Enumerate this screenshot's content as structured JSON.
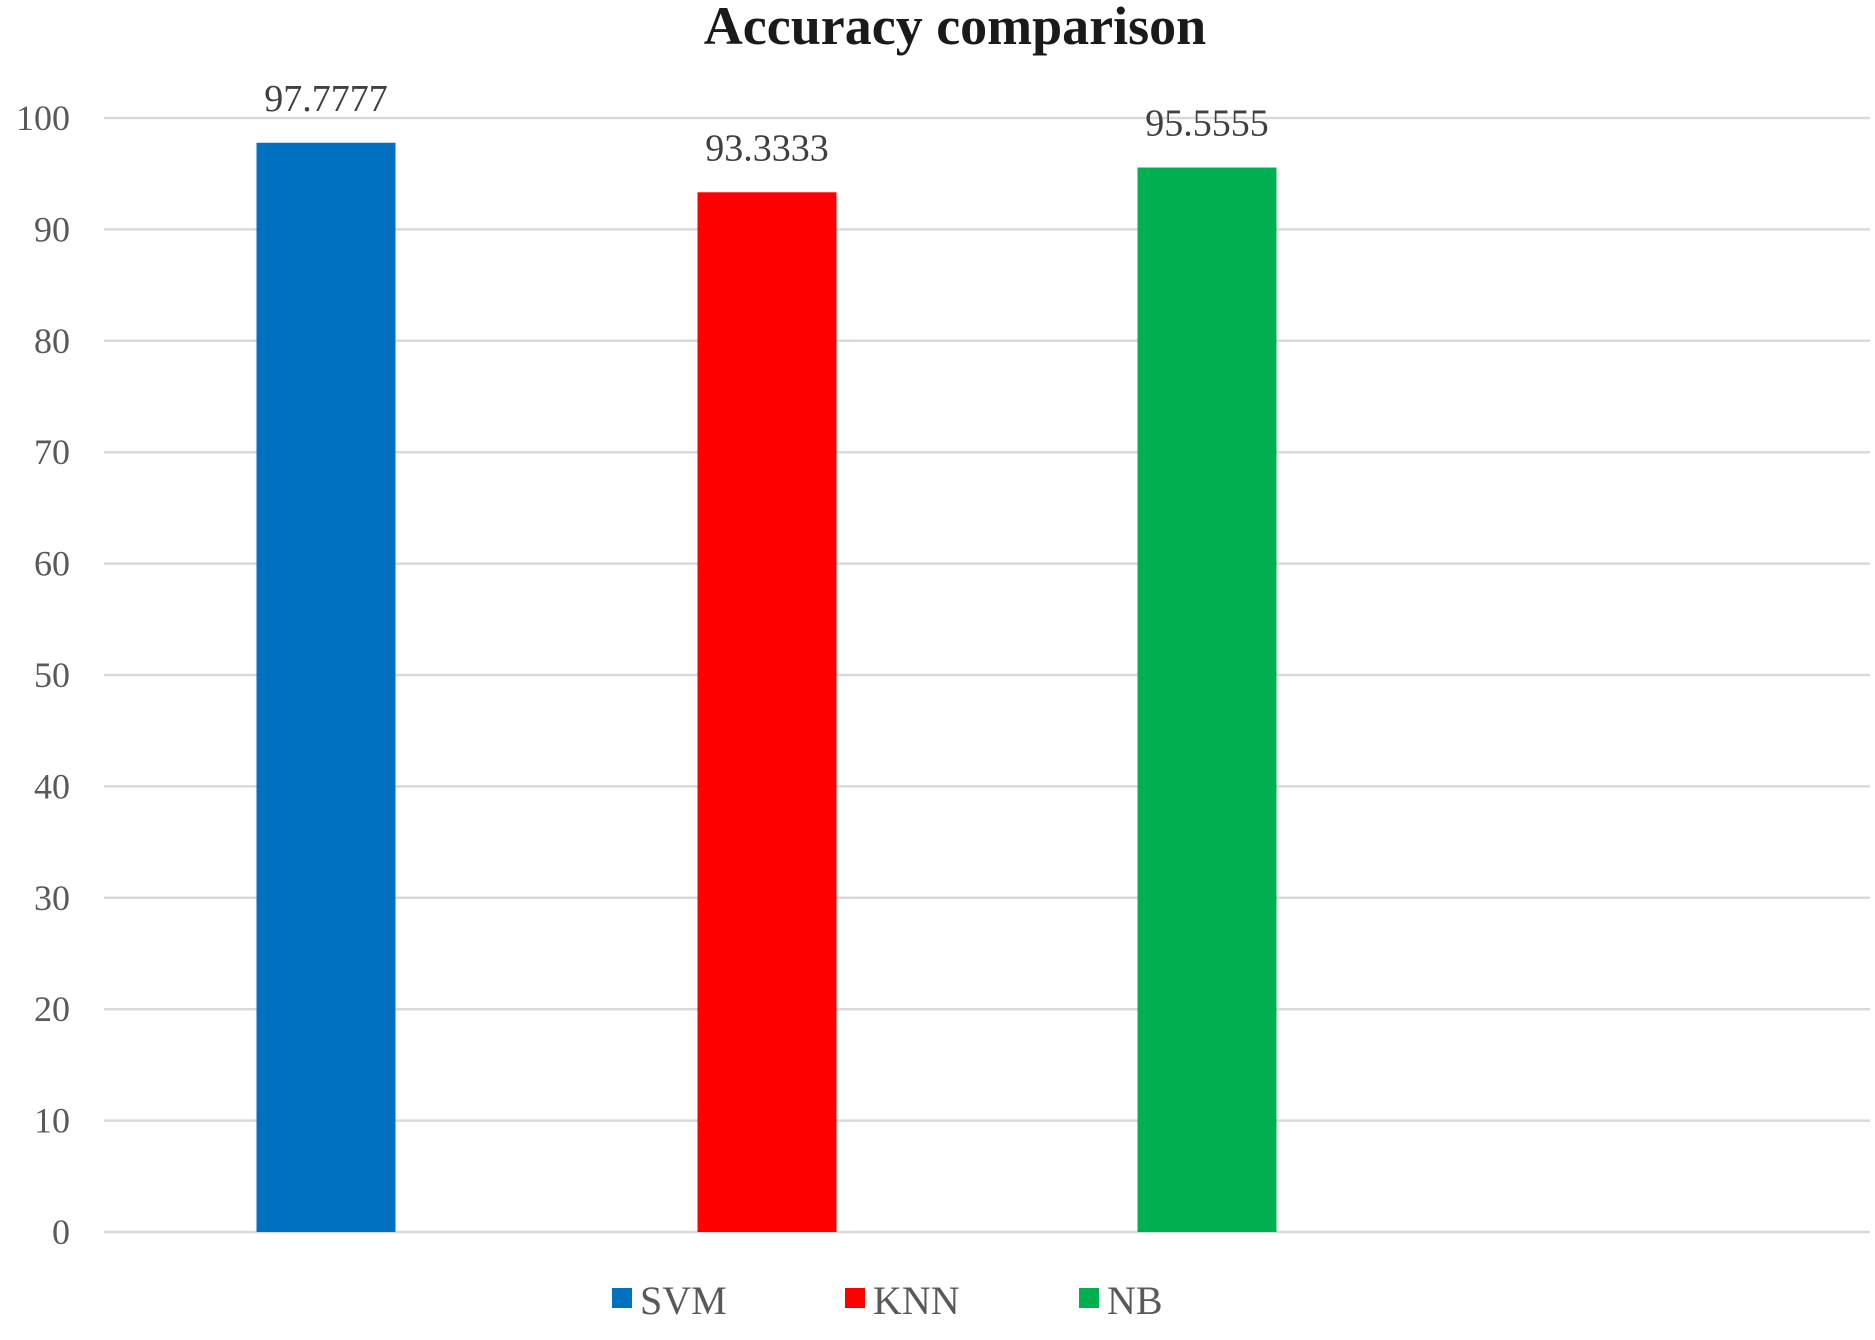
{
  "chart_data": {
    "type": "bar",
    "title": "Accuracy comparison",
    "xlabel": "",
    "ylabel": "",
    "ylim": [
      0,
      100
    ],
    "yticks": [
      0,
      10,
      20,
      30,
      40,
      50,
      60,
      70,
      80,
      90,
      100
    ],
    "grid": true,
    "legend_position": "bottom",
    "series": [
      {
        "name": "SVM",
        "value": 97.7777,
        "label": "97.7777",
        "color": "#0070C0"
      },
      {
        "name": "KNN",
        "value": 93.3333,
        "label": "93.3333",
        "color": "#FF0000"
      },
      {
        "name": "NB",
        "value": 95.5555,
        "label": "95.5555",
        "color": "#00B050"
      }
    ]
  }
}
